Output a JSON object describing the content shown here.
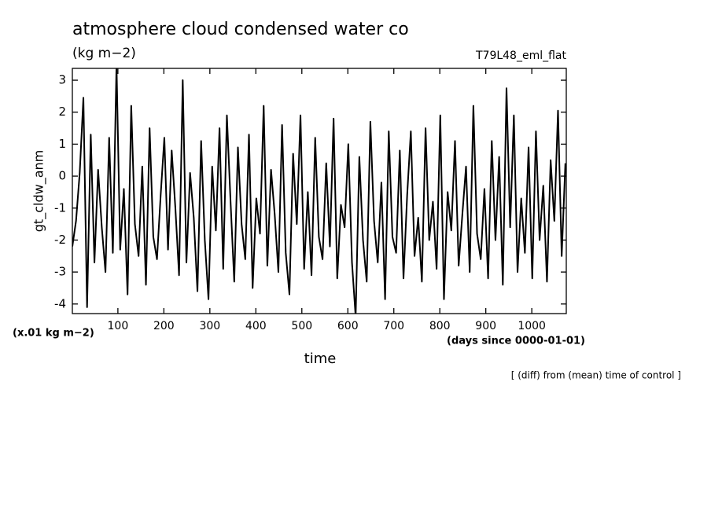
{
  "chart_data": {
    "type": "line",
    "title": "atmosphere cloud condensed water co",
    "subtitle": "(kg m−2)",
    "run_label": "T79L48_eml_flat",
    "y_label": "gt_cldw_anm",
    "y_unit": "(x.01 kg m−2)",
    "x_label": "time",
    "x_unit": "(days since 0000-01-01)",
    "note": "[ (diff) from (mean) time of control ]",
    "color": "#000000",
    "xlim": [
      1,
      1075
    ],
    "ylim": [
      -4.3,
      3.37
    ],
    "xticks": [
      100,
      200,
      300,
      400,
      500,
      600,
      700,
      800,
      900,
      1000
    ],
    "yticks": [
      -4,
      -3,
      -2,
      -1,
      0,
      1,
      2,
      3
    ],
    "x": [
      1,
      9,
      17,
      25,
      33,
      41,
      49,
      57,
      65,
      73,
      81,
      89,
      97,
      105,
      113,
      121,
      129,
      137,
      145,
      153,
      161,
      169,
      177,
      185,
      193,
      201,
      209,
      217,
      225,
      233,
      241,
      249,
      257,
      265,
      273,
      281,
      289,
      297,
      305,
      313,
      321,
      329,
      337,
      345,
      353,
      361,
      369,
      377,
      385,
      393,
      401,
      409,
      417,
      425,
      433,
      441,
      449,
      457,
      465,
      473,
      481,
      489,
      497,
      505,
      513,
      521,
      529,
      537,
      545,
      553,
      561,
      569,
      577,
      585,
      593,
      601,
      609,
      617,
      625,
      633,
      641,
      649,
      657,
      665,
      673,
      681,
      689,
      697,
      705,
      713,
      721,
      729,
      737,
      745,
      753,
      761,
      769,
      777,
      785,
      793,
      801,
      809,
      817,
      825,
      833,
      841,
      849,
      857,
      865,
      873,
      881,
      889,
      897,
      905,
      913,
      921,
      929,
      937,
      945,
      953,
      961,
      969,
      977,
      985,
      993,
      1001,
      1009,
      1017,
      1025,
      1033,
      1041,
      1049,
      1057,
      1065,
      1073
    ],
    "values": [
      -2.2,
      -1.4,
      0.1,
      2.45,
      -4.1,
      1.3,
      -2.7,
      0.2,
      -1.6,
      -3.0,
      1.2,
      -2.4,
      3.5,
      -2.3,
      -0.4,
      -3.7,
      2.2,
      -1.5,
      -2.5,
      0.3,
      -3.4,
      1.5,
      -1.9,
      -2.6,
      -0.6,
      1.2,
      -2.3,
      0.8,
      -1.0,
      -3.1,
      3.0,
      -2.7,
      0.1,
      -1.3,
      -3.6,
      1.1,
      -2.0,
      -3.85,
      0.3,
      -1.7,
      1.5,
      -2.9,
      1.9,
      -0.8,
      -3.3,
      0.9,
      -1.5,
      -2.6,
      1.3,
      -3.5,
      -0.7,
      -1.8,
      2.2,
      -2.8,
      0.2,
      -1.2,
      -3.0,
      1.6,
      -2.4,
      -3.7,
      0.7,
      -1.5,
      1.9,
      -2.9,
      -0.5,
      -3.1,
      1.2,
      -1.9,
      -2.6,
      0.4,
      -2.2,
      1.8,
      -3.2,
      -0.9,
      -1.6,
      1.0,
      -2.7,
      -4.4,
      0.6,
      -2.0,
      -3.3,
      1.7,
      -1.4,
      -2.7,
      -0.2,
      -3.85,
      1.4,
      -1.9,
      -2.4,
      0.8,
      -3.2,
      -0.6,
      1.4,
      -2.5,
      -1.3,
      -3.3,
      1.5,
      -2.0,
      -0.8,
      -2.9,
      1.9,
      -3.85,
      -0.5,
      -1.7,
      1.1,
      -2.8,
      -1.2,
      0.3,
      -3.0,
      2.2,
      -1.8,
      -2.6,
      -0.4,
      -3.2,
      1.1,
      -2.0,
      0.6,
      -3.4,
      2.75,
      -1.6,
      1.9,
      -3.0,
      -0.7,
      -2.4,
      0.9,
      -3.2,
      1.4,
      -2.0,
      -0.3,
      -3.3,
      0.5,
      -1.4,
      2.05,
      -2.5,
      0.4
    ]
  }
}
